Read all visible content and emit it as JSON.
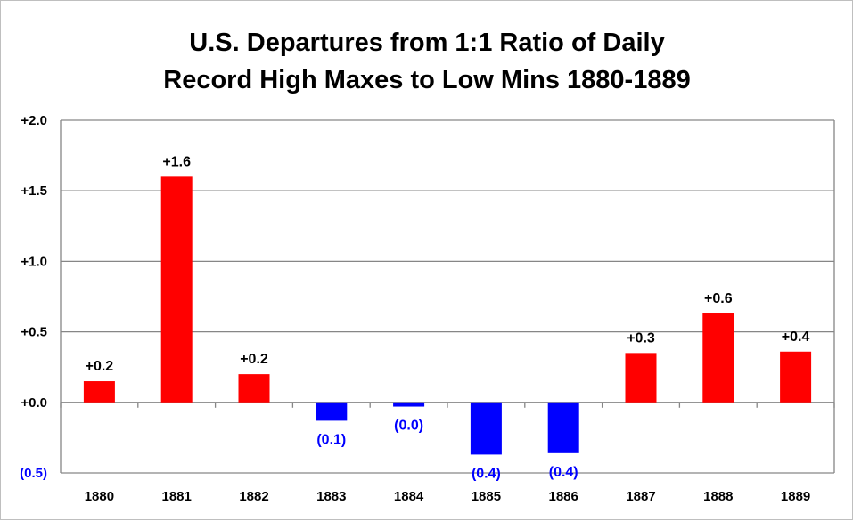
{
  "chart_data": {
    "type": "bar",
    "title": [
      "U.S. Departures from 1:1 Ratio of Daily",
      "Record High Maxes to Low Mins 1880-1889"
    ],
    "xlabel": "",
    "ylabel": "",
    "categories": [
      "1880",
      "1881",
      "1882",
      "1883",
      "1884",
      "1885",
      "1886",
      "1887",
      "1888",
      "1889"
    ],
    "values": [
      0.15,
      1.6,
      0.2,
      -0.13,
      -0.03,
      -0.37,
      -0.36,
      0.35,
      0.63,
      0.36
    ],
    "data_labels": [
      "+0.2",
      "+1.6",
      "+0.2",
      "(0.1)",
      "(0.0)",
      "(0.4)",
      "(0.4)",
      "+0.3",
      "+0.6",
      "+0.4"
    ],
    "ylim": [
      -0.5,
      2.0
    ],
    "yticks": [
      {
        "value": 2.0,
        "label": "+2.0"
      },
      {
        "value": 1.5,
        "label": "+1.5"
      },
      {
        "value": 1.0,
        "label": "+1.0"
      },
      {
        "value": 0.5,
        "label": "+0.5"
      },
      {
        "value": 0.0,
        "label": "+0.0"
      },
      {
        "value": -0.5,
        "label": "(0.5)"
      }
    ],
    "grid": true,
    "legend": "none",
    "colors": {
      "positive": "#ff0000",
      "negative": "#0000ff",
      "positive_label": "#000000",
      "negative_label": "#0000ff",
      "grid": "#868686"
    }
  }
}
